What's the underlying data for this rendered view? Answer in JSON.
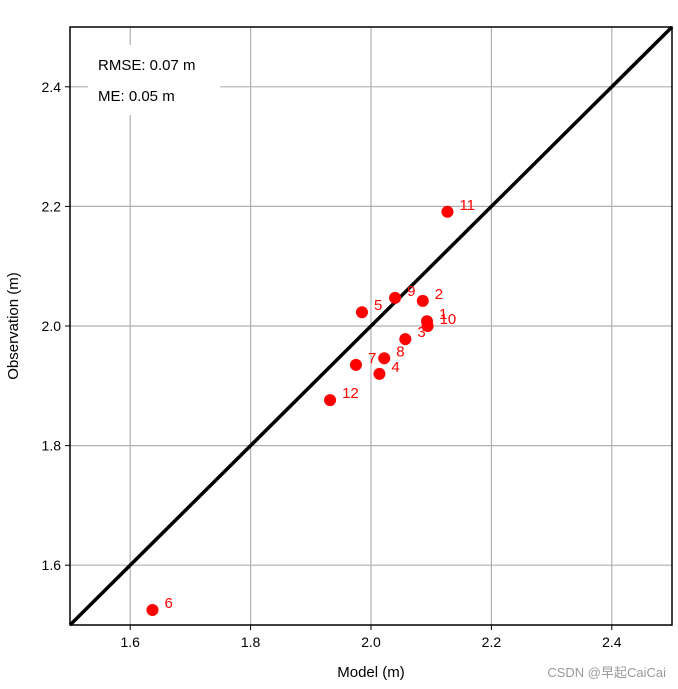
{
  "chart_data": {
    "type": "scatter",
    "title": "",
    "xlabel": "Model (m)",
    "ylabel": "Observation (m)",
    "xlim": [
      1.5,
      2.5
    ],
    "ylim": [
      1.5,
      2.5
    ],
    "xticks": [
      "1.6",
      "1.8",
      "2.0",
      "2.2",
      "2.4"
    ],
    "yticks": [
      "1.6",
      "1.8",
      "2.0",
      "2.2",
      "2.4"
    ],
    "grid": true,
    "reference_line": "1:1",
    "point_color": "#ff0000",
    "line_color": "#000000",
    "points": [
      {
        "label": "1",
        "x": 2.093,
        "y": 2.008
      },
      {
        "label": "2",
        "x": 2.086,
        "y": 2.042
      },
      {
        "label": "3",
        "x": 2.057,
        "y": 1.978
      },
      {
        "label": "4",
        "x": 2.014,
        "y": 1.92
      },
      {
        "label": "5",
        "x": 1.985,
        "y": 2.023
      },
      {
        "label": "6",
        "x": 1.637,
        "y": 1.525
      },
      {
        "label": "7",
        "x": 1.975,
        "y": 1.935
      },
      {
        "label": "8",
        "x": 2.022,
        "y": 1.946
      },
      {
        "label": "9",
        "x": 2.04,
        "y": 2.047
      },
      {
        "label": "10",
        "x": 2.094,
        "y": 2.0
      },
      {
        "label": "11",
        "x": 2.127,
        "y": 2.191
      },
      {
        "label": "12",
        "x": 1.932,
        "y": 1.876
      }
    ],
    "stats": {
      "rmse": "RMSE: 0.07 m",
      "me": "ME: 0.05 m"
    }
  },
  "watermark": "CSDN @早起CaiCai"
}
